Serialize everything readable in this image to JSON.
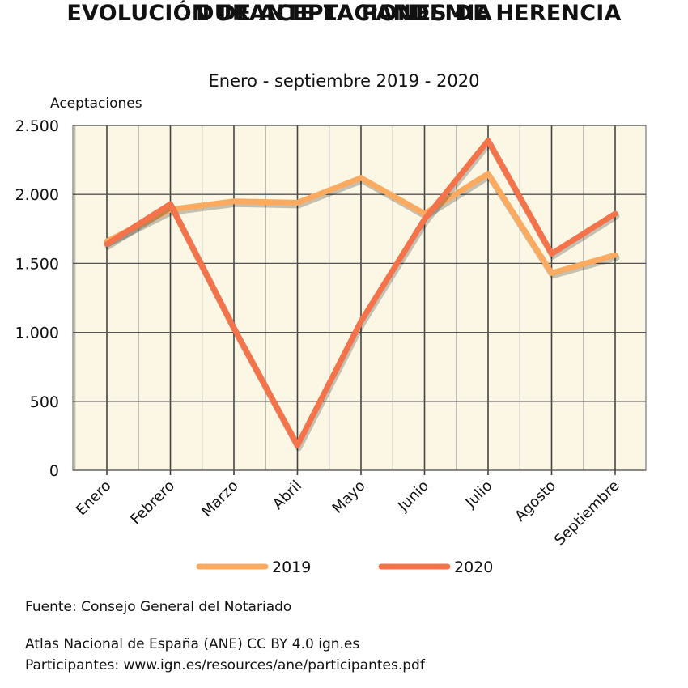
{
  "title_line1": "EVOLUCIÓN DE ACEPTACIONES DE HERENCIA",
  "title_line2": "DURANTE LA PANDEMIA",
  "subtitle": "Enero - septiembre 2019 - 2020",
  "source": "Fuente: Consejo General del Notariado",
  "credit_line1": "Atlas Nacional de España (ANE) CC BY 4.0 ign.es",
  "credit_line2": "Participantes: www.ign.es/resources/ane/participantes.pdf",
  "colors": {
    "plot_background": "#fcf7e4",
    "grid": "#777777",
    "series_2019": "#fcaa60",
    "series_2020": "#f4734a"
  },
  "chart_data": {
    "type": "line",
    "title": "EVOLUCIÓN DE ACEPTACIONES DE HERENCIA DURANTE LA PANDEMIA",
    "subtitle": "Enero - septiembre 2019 - 2020",
    "ylabel": "Aceptaciones",
    "xlabel": "",
    "ylim": [
      0,
      2500
    ],
    "yticks": [
      0,
      500,
      1000,
      1500,
      2000,
      2500
    ],
    "ytick_labels": [
      "0",
      "500",
      "1.000",
      "1.500",
      "2.000",
      "2.500"
    ],
    "categories": [
      "Enero",
      "Febrero",
      "Marzo",
      "Abril",
      "Mayo",
      "Junio",
      "Julio",
      "Agosto",
      "Septiembre"
    ],
    "grid": true,
    "legend_position": "bottom",
    "series": [
      {
        "name": "2019",
        "values": [
          1660,
          1890,
          1950,
          1940,
          2120,
          1860,
          2150,
          1430,
          1560
        ]
      },
      {
        "name": "2020",
        "values": [
          1640,
          1930,
          1030,
          180,
          1080,
          1820,
          2390,
          1570,
          1860
        ]
      }
    ]
  }
}
